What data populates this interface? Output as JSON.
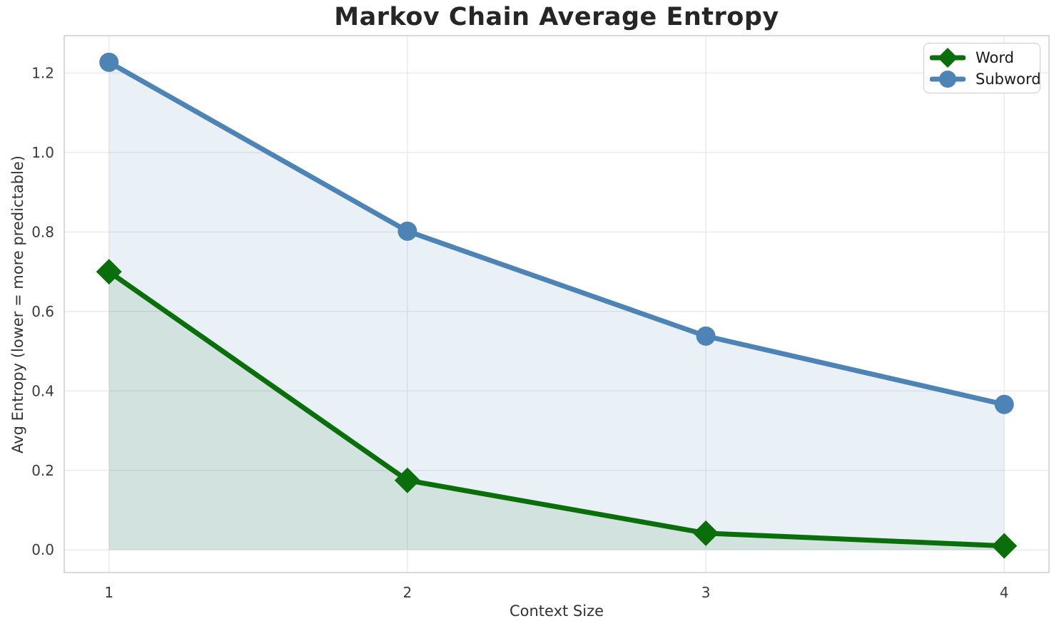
{
  "chart_data": {
    "type": "line",
    "title": "Markov Chain Average Entropy",
    "xlabel": "Context Size",
    "ylabel": "Avg Entropy (lower = more predictable)",
    "x": [
      1,
      2,
      3,
      4
    ],
    "series": [
      {
        "name": "Word",
        "color": "#0a6e0a",
        "marker": "diamond",
        "fill_opacity": 0.1,
        "values": [
          0.7,
          0.175,
          0.042,
          0.01
        ]
      },
      {
        "name": "Subword",
        "color": "#4e84b5",
        "marker": "circle",
        "fill_opacity": 0.12,
        "values": [
          1.227,
          0.802,
          0.538,
          0.366
        ]
      }
    ],
    "xticks": [
      1,
      2,
      3,
      4
    ],
    "yticks": [
      "0.0",
      "0.2",
      "0.4",
      "0.6",
      "0.8",
      "1.0",
      "1.2"
    ],
    "xlim": [
      0.85,
      4.15
    ],
    "ylim": [
      -0.057,
      1.294
    ],
    "grid": true,
    "fill_to_zero": true,
    "legend_position": "upper right",
    "style": {
      "grid_color": "#e8e8e8",
      "spine_color": "#cdcdcd",
      "title_color": "#262626",
      "label_color": "#333333",
      "tick_color": "#3b3b3b",
      "background": "#ffffff",
      "line_width": 7
    }
  }
}
